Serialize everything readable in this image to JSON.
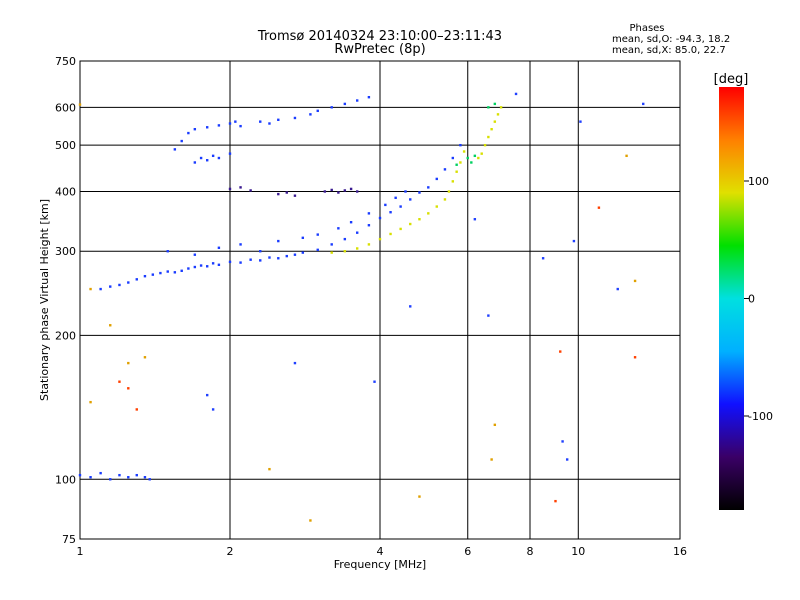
{
  "header": {
    "title_line1": "Tromsø 20140324 23:10:00–23:11:43",
    "title_line2": "RwPretec (8p)",
    "stats_title": "Phases",
    "stats_O": "mean, sd,O: -94.3, 18.2",
    "stats_X": "mean, sd,X: 85.0, 22.7"
  },
  "chart_data": {
    "type": "scatter",
    "xlabel": "Frequency [MHz]",
    "ylabel": "Stationary phase Virtual Height [km]",
    "x_scale": "log",
    "y_scale": "log",
    "xlim": [
      1,
      16
    ],
    "ylim": [
      75,
      750
    ],
    "x_ticks": [
      1,
      2,
      4,
      6,
      8,
      10,
      16
    ],
    "y_ticks": [
      75,
      100,
      200,
      300,
      400,
      500,
      600,
      750
    ],
    "grid": true,
    "colorbar": {
      "label": "[deg]",
      "range": [
        -180,
        180
      ],
      "ticks": [
        100,
        0,
        -100
      ],
      "colors": [
        "#000000",
        "#3a0066",
        "#1010ff",
        "#00b0ff",
        "#00e0e0",
        "#00e000",
        "#e0e000",
        "#ff8000",
        "#ff0000"
      ]
    },
    "series": [
      {
        "mode": "O",
        "phase_deg": -95,
        "color": "#1a3cff",
        "points": [
          [
            1.0,
            102
          ],
          [
            1.05,
            101
          ],
          [
            1.1,
            103
          ],
          [
            1.15,
            100
          ],
          [
            1.2,
            102
          ],
          [
            1.25,
            101
          ],
          [
            1.3,
            102
          ],
          [
            1.35,
            101
          ],
          [
            1.38,
            100
          ],
          [
            1.1,
            250
          ],
          [
            1.15,
            253
          ],
          [
            1.2,
            255
          ],
          [
            1.25,
            258
          ],
          [
            1.3,
            262
          ],
          [
            1.35,
            266
          ],
          [
            1.4,
            268
          ],
          [
            1.45,
            270
          ],
          [
            1.5,
            272
          ],
          [
            1.55,
            271
          ],
          [
            1.6,
            273
          ],
          [
            1.65,
            276
          ],
          [
            1.7,
            278
          ],
          [
            1.75,
            280
          ],
          [
            1.8,
            279
          ],
          [
            1.85,
            283
          ],
          [
            1.9,
            281
          ],
          [
            2.0,
            285
          ],
          [
            2.1,
            284
          ],
          [
            2.2,
            288
          ],
          [
            2.3,
            287
          ],
          [
            2.4,
            291
          ],
          [
            2.5,
            290
          ],
          [
            2.6,
            293
          ],
          [
            2.7,
            295
          ],
          [
            2.8,
            298
          ],
          [
            3.0,
            302
          ],
          [
            3.2,
            310
          ],
          [
            3.4,
            318
          ],
          [
            3.6,
            328
          ],
          [
            3.8,
            340
          ],
          [
            4.0,
            352
          ],
          [
            4.2,
            362
          ],
          [
            4.4,
            372
          ],
          [
            4.6,
            385
          ],
          [
            4.8,
            398
          ],
          [
            5.0,
            408
          ],
          [
            5.2,
            425
          ],
          [
            5.4,
            445
          ],
          [
            5.6,
            470
          ],
          [
            5.8,
            500
          ],
          [
            1.5,
            300
          ],
          [
            1.7,
            295
          ],
          [
            1.9,
            305
          ],
          [
            2.1,
            310
          ],
          [
            2.3,
            300
          ],
          [
            2.5,
            315
          ],
          [
            2.8,
            320
          ],
          [
            3.0,
            325
          ],
          [
            3.3,
            335
          ],
          [
            3.5,
            345
          ],
          [
            3.8,
            360
          ],
          [
            4.1,
            375
          ],
          [
            4.3,
            388
          ],
          [
            4.5,
            400
          ],
          [
            1.55,
            490
          ],
          [
            1.6,
            510
          ],
          [
            1.65,
            530
          ],
          [
            1.7,
            540
          ],
          [
            1.8,
            545
          ],
          [
            1.9,
            550
          ],
          [
            2.0,
            555
          ],
          [
            2.05,
            560
          ],
          [
            2.1,
            548
          ],
          [
            2.3,
            560
          ],
          [
            2.4,
            555
          ],
          [
            2.5,
            565
          ],
          [
            2.7,
            570
          ],
          [
            2.9,
            580
          ],
          [
            3.0,
            590
          ],
          [
            3.2,
            600
          ],
          [
            3.4,
            610
          ],
          [
            3.6,
            620
          ],
          [
            3.8,
            630
          ],
          [
            1.7,
            460
          ],
          [
            1.75,
            470
          ],
          [
            1.8,
            465
          ],
          [
            1.85,
            475
          ],
          [
            1.9,
            470
          ],
          [
            2.0,
            480
          ]
        ]
      },
      {
        "mode": "O",
        "phase_deg": -140,
        "color": "#3a1a90",
        "points": [
          [
            2.0,
            405
          ],
          [
            2.1,
            408
          ],
          [
            2.2,
            402
          ],
          [
            2.5,
            395
          ],
          [
            2.6,
            398
          ],
          [
            2.7,
            392
          ],
          [
            3.1,
            400
          ],
          [
            3.2,
            403
          ],
          [
            3.3,
            398
          ],
          [
            3.4,
            402
          ],
          [
            3.5,
            405
          ],
          [
            3.6,
            400
          ]
        ]
      },
      {
        "mode": "X",
        "phase_deg": 85,
        "color": "#d8e000",
        "points": [
          [
            3.2,
            298
          ],
          [
            3.4,
            300
          ],
          [
            3.6,
            304
          ],
          [
            3.8,
            310
          ],
          [
            4.0,
            318
          ],
          [
            4.2,
            326
          ],
          [
            4.4,
            334
          ],
          [
            4.6,
            342
          ],
          [
            4.8,
            350
          ],
          [
            5.0,
            360
          ],
          [
            5.2,
            372
          ],
          [
            5.4,
            385
          ],
          [
            5.5,
            400
          ],
          [
            5.6,
            420
          ],
          [
            5.7,
            440
          ],
          [
            5.8,
            460
          ],
          [
            5.9,
            485
          ],
          [
            6.4,
            480
          ],
          [
            6.5,
            500
          ],
          [
            6.6,
            520
          ],
          [
            6.7,
            540
          ],
          [
            6.8,
            560
          ],
          [
            6.9,
            580
          ],
          [
            7.0,
            600
          ],
          [
            6.3,
            470
          ]
        ]
      },
      {
        "mode": "mixed",
        "phase_deg": 0,
        "color": "#00d060",
        "points": [
          [
            6.0,
            470
          ],
          [
            6.1,
            460
          ],
          [
            6.2,
            475
          ],
          [
            5.7,
            455
          ],
          [
            6.6,
            600
          ],
          [
            6.8,
            610
          ]
        ]
      },
      {
        "mode": "scatter",
        "phase_deg": 150,
        "color": "#ff4000",
        "points": [
          [
            1.2,
            160
          ],
          [
            1.25,
            155
          ],
          [
            1.3,
            140
          ],
          [
            9.2,
            185
          ],
          [
            11.0,
            370
          ],
          [
            13.0,
            180
          ],
          [
            9.0,
            90
          ]
        ]
      },
      {
        "mode": "scatter",
        "phase_deg": -100,
        "color": "#2040ff",
        "points": [
          [
            1.8,
            150
          ],
          [
            1.85,
            140
          ],
          [
            2.7,
            175
          ],
          [
            3.9,
            160
          ],
          [
            4.6,
            230
          ],
          [
            6.2,
            350
          ],
          [
            6.6,
            220
          ],
          [
            8.5,
            290
          ],
          [
            9.3,
            120
          ],
          [
            9.5,
            110
          ],
          [
            9.8,
            315
          ],
          [
            10.1,
            560
          ],
          [
            12.0,
            250
          ],
          [
            13.5,
            610
          ],
          [
            7.5,
            640
          ]
        ]
      },
      {
        "mode": "scatter",
        "phase_deg": 60,
        "color": "#e0a000",
        "points": [
          [
            1.0,
            608
          ],
          [
            1.05,
            250
          ],
          [
            1.15,
            210
          ],
          [
            1.25,
            175
          ],
          [
            1.35,
            180
          ],
          [
            2.4,
            105
          ],
          [
            2.9,
            82
          ],
          [
            4.8,
            92
          ],
          [
            6.7,
            110
          ],
          [
            6.8,
            130
          ],
          [
            12.5,
            475
          ],
          [
            13.0,
            260
          ],
          [
            1.05,
            145
          ]
        ]
      }
    ]
  }
}
